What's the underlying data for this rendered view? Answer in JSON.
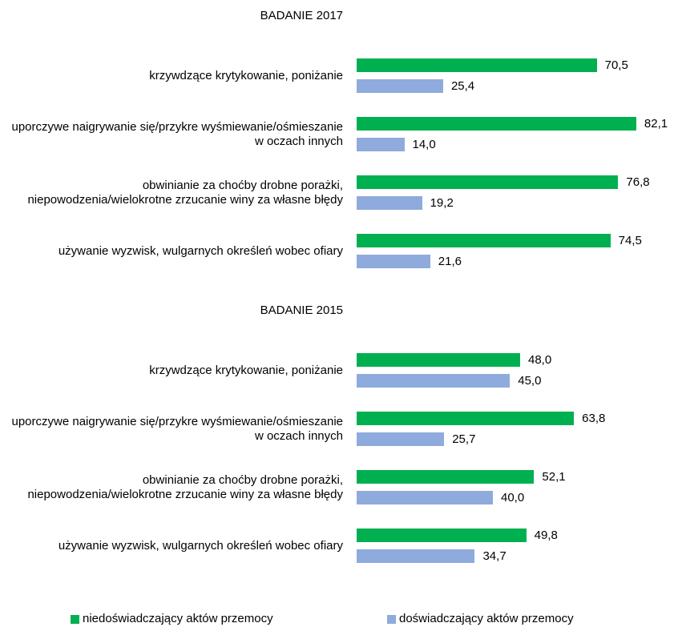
{
  "chart_data": [
    {
      "type": "bar",
      "orientation": "horizontal",
      "title": "BADANIE 2017",
      "categories": [
        "krzywdzące krytykowanie, poniżanie",
        "uporczywe naigrywanie się/przykre wyśmiewanie/ośmieszanie w oczach innych",
        "obwinianie za choćby drobne porażki, niepowodzenia/wielokrotne zrzucanie winy za własne błędy",
        "używanie wyzwisk, wulgarnych określeń wobec ofiary"
      ],
      "series": [
        {
          "name": "niedoświadczający aktów przemocy",
          "color": "#00b050",
          "values": [
            70.5,
            82.1,
            76.8,
            74.5
          ],
          "value_labels": [
            "70,5",
            "82,1",
            "76,8",
            "74,5"
          ]
        },
        {
          "name": "doświadczający aktów przemocy",
          "color": "#8faadc",
          "values": [
            25.4,
            14.0,
            19.2,
            21.6
          ],
          "value_labels": [
            "25,4",
            "14,0",
            "19,2",
            "21,6"
          ]
        }
      ],
      "legend": "bottom"
    },
    {
      "type": "bar",
      "orientation": "horizontal",
      "title": "BADANIE 2015",
      "categories": [
        "krzywdzące krytykowanie, poniżanie",
        "uporczywe naigrywanie się/przykre wyśmiewanie/ośmieszanie w oczach innych",
        "obwinianie za choćby drobne porażki, niepowodzenia/wielokrotne zrzucanie winy za własne błędy",
        "używanie wyzwisk, wulgarnych określeń wobec ofiary"
      ],
      "series": [
        {
          "name": "niedoświadczający aktów przemocy",
          "color": "#00b050",
          "values": [
            48.0,
            63.8,
            52.1,
            49.8
          ],
          "value_labels": [
            "48,0",
            "63,8",
            "52,1",
            "49,8"
          ]
        },
        {
          "name": "doświadczający aktów przemocy",
          "color": "#8faadc",
          "values": [
            45.0,
            25.7,
            40.0,
            34.7
          ],
          "value_labels": [
            "45,0",
            "25,7",
            "40,0",
            "34,7"
          ]
        }
      ],
      "legend": "bottom"
    }
  ]
}
